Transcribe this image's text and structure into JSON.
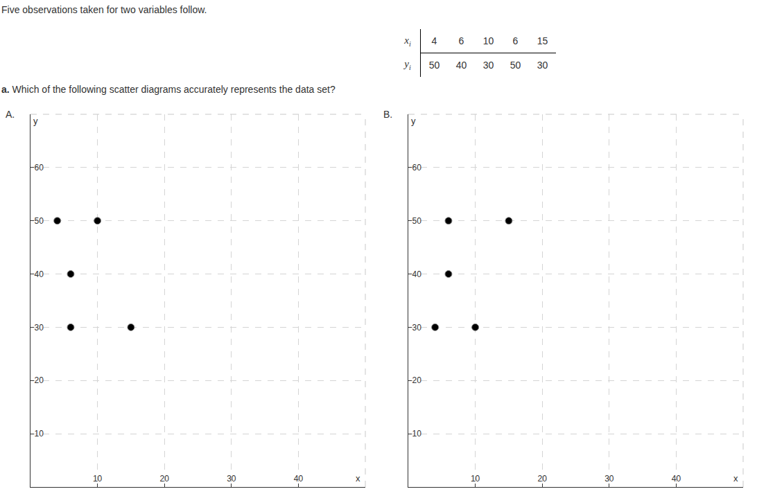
{
  "header": "Five observations taken for two variables follow.",
  "table": {
    "rows": [
      {
        "var": "x",
        "sub": "i",
        "values": [
          4,
          6,
          10,
          6,
          15
        ]
      },
      {
        "var": "y",
        "sub": "i",
        "values": [
          50,
          40,
          30,
          50,
          30
        ]
      }
    ]
  },
  "question": {
    "label": "a.",
    "text": "Which of the following scatter diagrams accurately represents the data set?"
  },
  "chart_data": [
    {
      "option": "A.",
      "type": "scatter",
      "xlabel": "x",
      "ylabel": "y",
      "x": [
        4,
        6,
        6,
        10,
        15
      ],
      "values": [
        50,
        40,
        30,
        50,
        30
      ],
      "xlim": [
        0,
        50
      ],
      "ylim": [
        0,
        70
      ],
      "xticks": [
        10,
        20,
        30,
        40
      ],
      "yticks": [
        10,
        20,
        30,
        40,
        50,
        60
      ],
      "grid": true,
      "color": "#000000",
      "marker": "circle"
    },
    {
      "option": "B.",
      "type": "scatter",
      "xlabel": "x",
      "ylabel": "y",
      "x": [
        6,
        6,
        4,
        10,
        15
      ],
      "values": [
        50,
        40,
        30,
        30,
        50
      ],
      "xlim": [
        0,
        50
      ],
      "ylim": [
        0,
        70
      ],
      "xticks": [
        10,
        20,
        30,
        40
      ],
      "yticks": [
        10,
        20,
        30,
        40,
        50,
        60
      ],
      "grid": true,
      "color": "#000000",
      "marker": "circle"
    }
  ]
}
